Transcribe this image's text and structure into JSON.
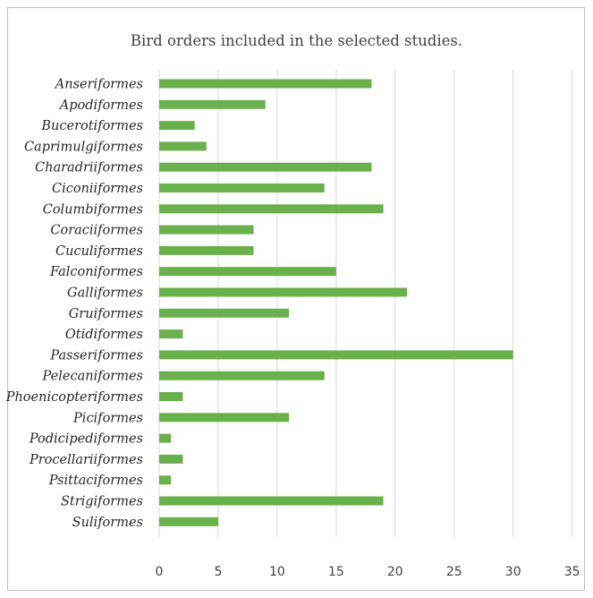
{
  "chart_data": {
    "type": "bar",
    "orientation": "horizontal",
    "title": "Bird orders included in the selected studies.",
    "xlabel": "",
    "ylabel": "",
    "categories": [
      "Anseriformes",
      "Apodiformes",
      "Bucerotiformes",
      "Caprimulgiformes",
      "Charadriiformes",
      "Ciconiiformes",
      "Columbiformes",
      "Coraciiformes",
      "Cuculiformes",
      "Falconiformes",
      "Galliformes",
      "Gruiformes",
      "Otidiformes",
      "Passeriformes",
      "Pelecaniformes",
      "Phoenicopteriformes",
      "Piciformes",
      "Podicipediformes",
      "Procellariiformes",
      "Psittaciformes",
      "Strigiformes",
      "Suliformes"
    ],
    "values": [
      18,
      9,
      3,
      4,
      18,
      14,
      19,
      8,
      8,
      15,
      21,
      11,
      2,
      30,
      14,
      2,
      11,
      1,
      2,
      1,
      19,
      5
    ],
    "xlim": [
      0,
      35
    ],
    "xticks": [
      0,
      5,
      10,
      15,
      20,
      25,
      30,
      35
    ],
    "grid": true,
    "legend": "none",
    "bar_color": "#6ab04c",
    "grid_color": "#d9d9d9"
  }
}
